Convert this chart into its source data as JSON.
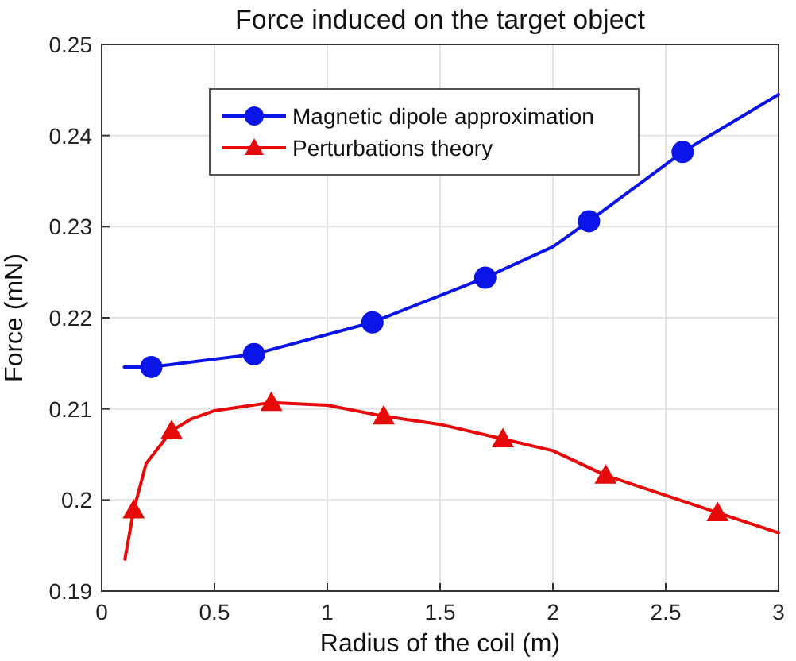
{
  "chart_data": {
    "type": "line",
    "title": "Force induced on the target object",
    "xlabel": "Radius of the coil (m)",
    "ylabel": "Force (mN)",
    "xlim": [
      0,
      3
    ],
    "xticks": [
      0,
      0.5,
      1,
      1.5,
      2,
      2.5,
      3
    ],
    "ylim": [
      0.19,
      0.25
    ],
    "yticks": [
      0.19,
      0.2,
      0.21,
      0.22,
      0.23,
      0.24,
      0.25
    ],
    "grid": true,
    "legend": "top left",
    "line_style": "solid",
    "series": [
      {
        "name": "Magnetic dipole approximation",
        "color": "#0a14e6",
        "x": [
          0.1,
          0.22,
          0.675,
          1.2,
          1.7,
          2,
          2.16,
          2.575,
          3
        ],
        "values": [
          0.2146,
          0.2146,
          0.216,
          0.2195,
          0.2244,
          0.2278,
          0.2306,
          0.2382,
          0.2445
        ]
      },
      {
        "name": "Perturbations theory",
        "color": "#e60a0a",
        "x": [
          0.103,
          0.142,
          0.197,
          0.31,
          0.397,
          0.5,
          0.752,
          1,
          1.25,
          1.5,
          1.778,
          2,
          2.234,
          2.73,
          3
        ],
        "values": [
          0.1935,
          0.1989,
          0.204,
          0.2076,
          0.2089,
          0.2098,
          0.2107,
          0.2104,
          0.2092,
          0.2083,
          0.2067,
          0.2054,
          0.2027,
          0.1986,
          0.1964
        ]
      },
      {
        "type": "scatter",
        "color": "#0a14e6",
        "marker": "circle",
        "x": [
          0.22,
          0.675,
          1.2,
          1.7,
          2.16,
          2.575
        ],
        "values": [
          0.2146,
          0.216,
          0.2195,
          0.2244,
          0.2306,
          0.2382
        ]
      },
      {
        "type": "scatter",
        "color": "#e60a0a",
        "marker": "triangle",
        "x": [
          0.142,
          0.31,
          0.752,
          1.25,
          1.778,
          2.234,
          2.73
        ],
        "values": [
          0.1989,
          0.2076,
          0.2107,
          0.2092,
          0.2067,
          0.2027,
          0.1986
        ]
      }
    ]
  }
}
